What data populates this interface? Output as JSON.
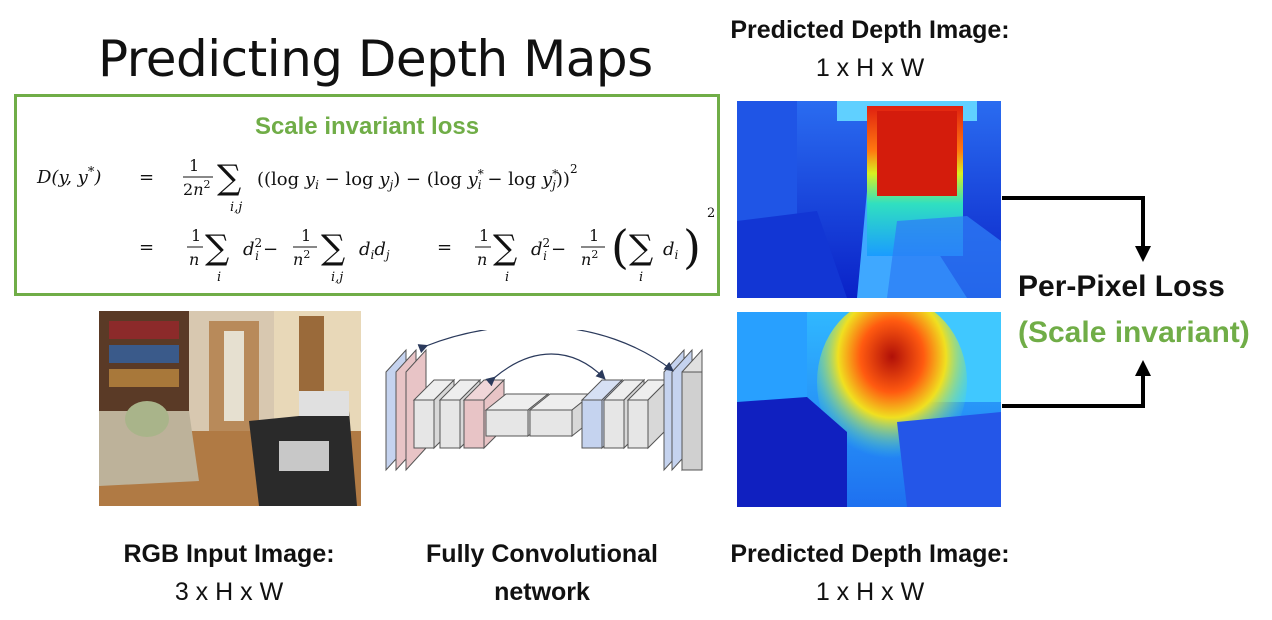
{
  "title": "Predicting Depth Maps",
  "loss_box": {
    "heading": "Scale invariant loss",
    "formula_line1": "D(y, y*)  =  1/(2n²) Σ_{i,j} ((log y_i − log y_j) − (log y*_i − log y*_j))²",
    "formula_line2": "=  1/n Σ_i d_i² − 1/n² Σ_{i,j} d_i d_j  =  1/n Σ_i d_i² − 1/n² (Σ_i d_i)²"
  },
  "top_depth": {
    "label": "Predicted Depth Image:",
    "dims": "1 x H x W"
  },
  "bottom_depth": {
    "label": "Predicted Depth Image:",
    "dims": "1 x H x W"
  },
  "rgb_input": {
    "label": "RGB Input Image:",
    "dims": "3 x H x W"
  },
  "network": {
    "label_line1": "Fully Convolutional",
    "label_line2": "network"
  },
  "loss": {
    "label": "Per-Pixel Loss",
    "sublabel": "(Scale invariant)"
  },
  "colors": {
    "accent_green": "#70ad47",
    "red_layer": "#e8c4c6",
    "blue_layer": "#c5d3ef",
    "gray_layer": "#e6e6e6"
  }
}
